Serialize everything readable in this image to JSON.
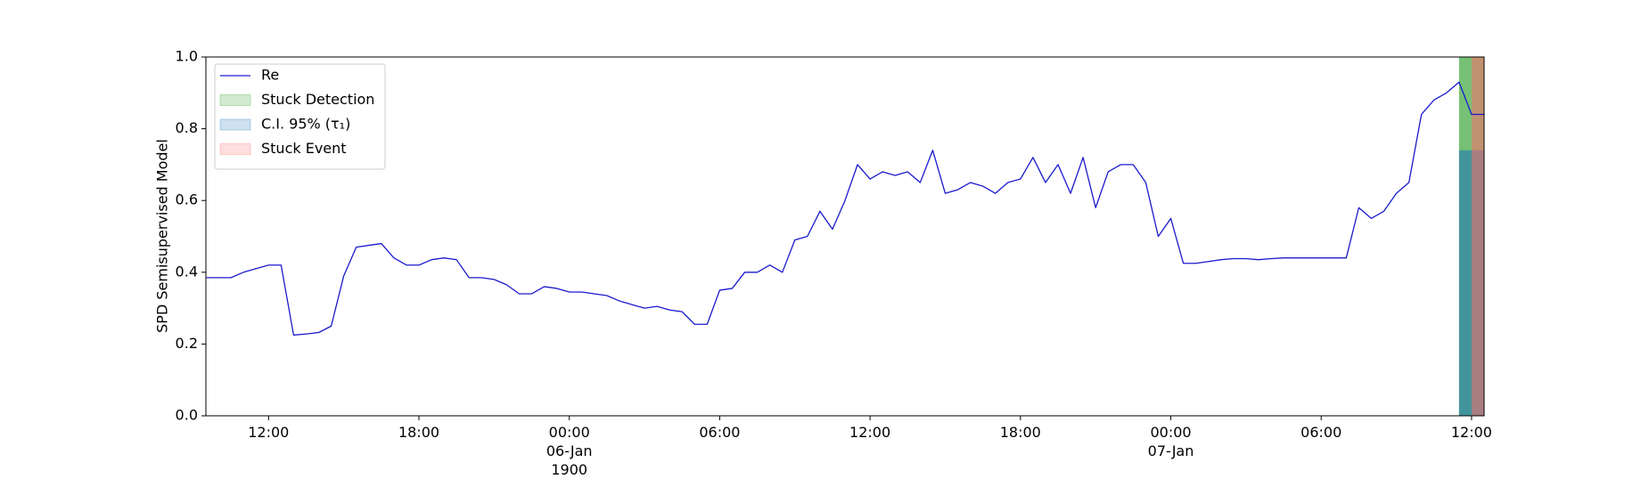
{
  "chart_data": {
    "type": "line",
    "y_label": "SPD Semisupervised Model",
    "xlim": [
      "1900-01-05T09:30",
      "1900-01-07T12:30"
    ],
    "ylim": [
      0,
      1
    ],
    "yticks": [
      {
        "value": 0,
        "label": "0.0"
      },
      {
        "value": 0.2,
        "label": "0.2"
      },
      {
        "value": 0.4,
        "label": "0.4"
      },
      {
        "value": 0.6,
        "label": "0.6"
      },
      {
        "value": 0.8,
        "label": "0.8"
      },
      {
        "value": 1,
        "label": "1.0"
      }
    ],
    "xticks": [
      {
        "value": "1900-01-05T12:00",
        "label": "12:00"
      },
      {
        "value": "1900-01-05T18:00",
        "label": "18:00"
      },
      {
        "value": "1900-01-06T00:00",
        "label": "00:00\n06-Jan\n1900"
      },
      {
        "value": "1900-01-06T06:00",
        "label": "06:00"
      },
      {
        "value": "1900-01-06T12:00",
        "label": "12:00"
      },
      {
        "value": "1900-01-06T18:00",
        "label": "18:00"
      },
      {
        "value": "1900-01-07T00:00",
        "label": "00:00\n07-Jan"
      },
      {
        "value": "1900-01-07T06:00",
        "label": "06:00"
      },
      {
        "value": "1900-01-07T12:00",
        "label": "12:00"
      }
    ],
    "legend": "upper left",
    "x": [
      "1900-01-05T09:30",
      "1900-01-05T10:00",
      "1900-01-05T10:30",
      "1900-01-05T11:00",
      "1900-01-05T11:30",
      "1900-01-05T12:00",
      "1900-01-05T12:30",
      "1900-01-05T13:00",
      "1900-01-05T13:30",
      "1900-01-05T14:00",
      "1900-01-05T14:30",
      "1900-01-05T15:00",
      "1900-01-05T15:30",
      "1900-01-05T16:00",
      "1900-01-05T16:30",
      "1900-01-05T17:00",
      "1900-01-05T17:30",
      "1900-01-05T18:00",
      "1900-01-05T18:30",
      "1900-01-05T19:00",
      "1900-01-05T19:30",
      "1900-01-05T20:00",
      "1900-01-05T20:30",
      "1900-01-05T21:00",
      "1900-01-05T21:30",
      "1900-01-05T22:00",
      "1900-01-05T22:30",
      "1900-01-05T23:00",
      "1900-01-05T23:30",
      "1900-01-06T00:00",
      "1900-01-06T00:30",
      "1900-01-06T01:00",
      "1900-01-06T01:30",
      "1900-01-06T02:00",
      "1900-01-06T02:30",
      "1900-01-06T03:00",
      "1900-01-06T03:30",
      "1900-01-06T04:00",
      "1900-01-06T04:30",
      "1900-01-06T05:00",
      "1900-01-06T05:30",
      "1900-01-06T06:00",
      "1900-01-06T06:30",
      "1900-01-06T07:00",
      "1900-01-06T07:30",
      "1900-01-06T08:00",
      "1900-01-06T08:30",
      "1900-01-06T09:00",
      "1900-01-06T09:30",
      "1900-01-06T10:00",
      "1900-01-06T10:30",
      "1900-01-06T11:00",
      "1900-01-06T11:30",
      "1900-01-06T12:00",
      "1900-01-06T12:30",
      "1900-01-06T13:00",
      "1900-01-06T13:30",
      "1900-01-06T14:00",
      "1900-01-06T14:30",
      "1900-01-06T15:00",
      "1900-01-06T15:30",
      "1900-01-06T16:00",
      "1900-01-06T16:30",
      "1900-01-06T17:00",
      "1900-01-06T17:30",
      "1900-01-06T18:00",
      "1900-01-06T18:30",
      "1900-01-06T19:00",
      "1900-01-06T19:30",
      "1900-01-06T20:00",
      "1900-01-06T20:30",
      "1900-01-06T21:00",
      "1900-01-06T21:30",
      "1900-01-06T22:00",
      "1900-01-06T22:30",
      "1900-01-06T23:00",
      "1900-01-06T23:30",
      "1900-01-07T00:00",
      "1900-01-07T00:30",
      "1900-01-07T01:00",
      "1900-01-07T01:30",
      "1900-01-07T02:00",
      "1900-01-07T02:30",
      "1900-01-07T03:00",
      "1900-01-07T03:30",
      "1900-01-07T04:00",
      "1900-01-07T04:30",
      "1900-01-07T05:00",
      "1900-01-07T05:30",
      "1900-01-07T06:00",
      "1900-01-07T06:30",
      "1900-01-07T07:00",
      "1900-01-07T07:30",
      "1900-01-07T08:00",
      "1900-01-07T08:30",
      "1900-01-07T09:00",
      "1900-01-07T09:30",
      "1900-01-07T10:00",
      "1900-01-07T10:30",
      "1900-01-07T11:00",
      "1900-01-07T11:30",
      "1900-01-07T12:00",
      "1900-01-07T12:30"
    ],
    "series": [
      {
        "name": "Re",
        "color": "#1a1acd",
        "values": [
          0.385,
          0.385,
          0.385,
          0.4,
          0.41,
          0.42,
          0.42,
          0.225,
          0.228,
          0.232,
          0.25,
          0.39,
          0.47,
          0.475,
          0.48,
          0.44,
          0.42,
          0.42,
          0.435,
          0.44,
          0.435,
          0.385,
          0.385,
          0.38,
          0.365,
          0.34,
          0.34,
          0.36,
          0.355,
          0.345,
          0.345,
          0.34,
          0.335,
          0.32,
          0.31,
          0.3,
          0.305,
          0.295,
          0.29,
          0.255,
          0.255,
          0.35,
          0.355,
          0.4,
          0.4,
          0.42,
          0.4,
          0.49,
          0.5,
          0.57,
          0.52,
          0.6,
          0.7,
          0.66,
          0.68,
          0.67,
          0.68,
          0.65,
          0.74,
          0.62,
          0.63,
          0.65,
          0.64,
          0.62,
          0.65,
          0.66,
          0.72,
          0.65,
          0.7,
          0.62,
          0.72,
          0.58,
          0.68,
          0.7,
          0.7,
          0.65,
          0.5,
          0.55,
          0.425,
          0.425,
          0.43,
          0.435,
          0.438,
          0.438,
          0.435,
          0.438,
          0.44,
          0.44,
          0.44,
          0.44,
          0.44,
          0.44,
          0.58,
          0.55,
          0.57,
          0.62,
          0.65,
          0.84,
          0.88,
          0.9,
          0.93,
          0.84,
          0.84
        ]
      }
    ],
    "spans": [
      {
        "name": "Stuck Detection",
        "color": "#2ca02c",
        "x": [
          "1900-01-07T11:30",
          "1900-01-07T12:30"
        ],
        "y": [
          0,
          1
        ]
      },
      {
        "name": "C.I. 95% (τ₁)",
        "color": "#1f77b4",
        "x": [
          "1900-01-07T11:30",
          "1900-01-07T12:30"
        ],
        "y": [
          0,
          0.74
        ]
      },
      {
        "name": "Stuck Event",
        "color": "#ff6b6b",
        "x": [
          "1900-01-07T12:00",
          "1900-01-07T12:30"
        ],
        "y": [
          0,
          1
        ]
      }
    ]
  }
}
